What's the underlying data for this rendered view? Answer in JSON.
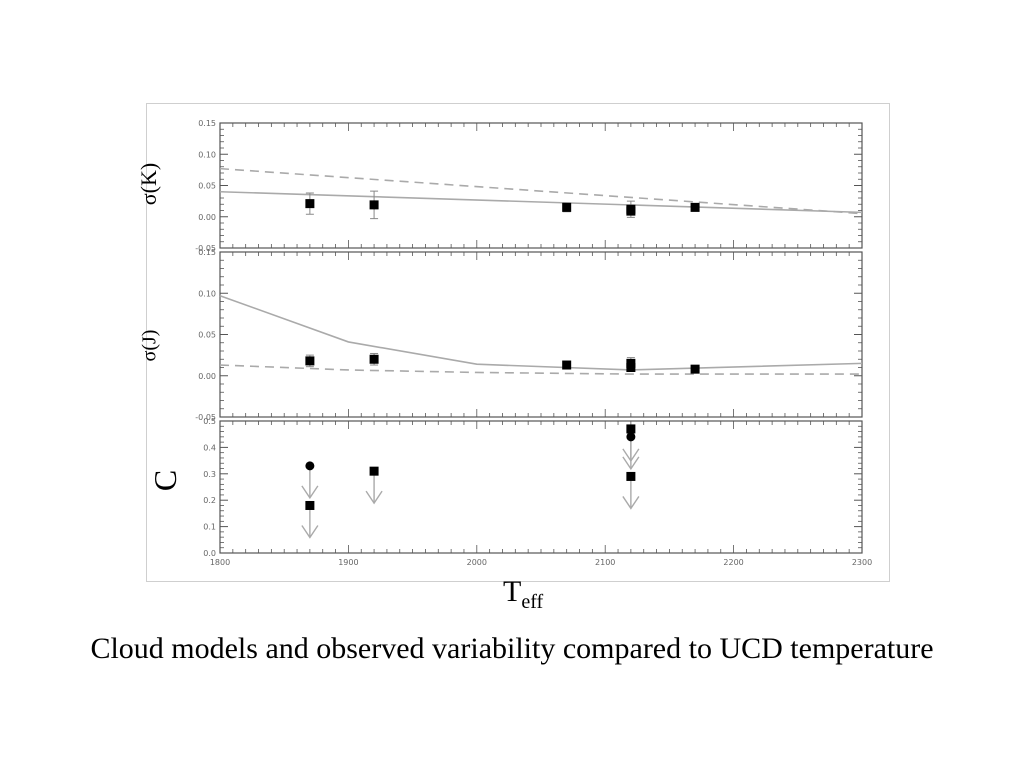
{
  "caption": "Cloud models and observed variability compared to UCD temperature",
  "chart_data": [
    {
      "type": "scatter",
      "panel": "top",
      "ylabel": "σ(K)",
      "xlim": [
        1800,
        2300
      ],
      "ylim": [
        -0.05,
        0.15
      ],
      "yticks": [
        "-0.05",
        "0.00",
        "0.05",
        "0.10",
        "0.15"
      ],
      "grid": false,
      "points": [
        {
          "x": 1870,
          "y": 0.021,
          "err": 0.017
        },
        {
          "x": 1920,
          "y": 0.019,
          "err": 0.022
        },
        {
          "x": 2070,
          "y": 0.015,
          "err": 0.007
        },
        {
          "x": 2120,
          "y": 0.012,
          "err": 0.013
        },
        {
          "x": 2120,
          "y": 0.009,
          "err": 0.0
        },
        {
          "x": 2170,
          "y": 0.015,
          "err": 0.006
        }
      ],
      "lines": [
        {
          "style": "solid",
          "x": [
            1800,
            2300
          ],
          "y": [
            0.04,
            0.007
          ]
        },
        {
          "style": "dashed",
          "x": [
            1800,
            2300
          ],
          "y": [
            0.077,
            0.005
          ]
        }
      ]
    },
    {
      "type": "scatter",
      "panel": "middle",
      "ylabel": "σ(J)",
      "xlim": [
        1800,
        2300
      ],
      "ylim": [
        -0.05,
        0.15
      ],
      "yticks": [
        "-0.05",
        "0.00",
        "0.05",
        "0.10",
        "0.15"
      ],
      "grid": false,
      "points": [
        {
          "x": 1870,
          "y": 0.018,
          "err": 0.007
        },
        {
          "x": 1920,
          "y": 0.02,
          "err": 0.007
        },
        {
          "x": 2070,
          "y": 0.013,
          "err": 0.004
        },
        {
          "x": 2120,
          "y": 0.015,
          "err": 0.007
        },
        {
          "x": 2120,
          "y": 0.01,
          "err": 0.0
        },
        {
          "x": 2170,
          "y": 0.008,
          "err": 0.004
        }
      ],
      "lines": [
        {
          "style": "solid",
          "x": [
            1800,
            1900,
            2000,
            2120,
            2300
          ],
          "y": [
            0.097,
            0.041,
            0.014,
            0.007,
            0.015
          ]
        },
        {
          "style": "dashed",
          "x": [
            1800,
            1900,
            2000,
            2120,
            2300
          ],
          "y": [
            0.013,
            0.007,
            0.004,
            0.002,
            0.002
          ]
        }
      ]
    },
    {
      "type": "scatter",
      "panel": "bottom",
      "ylabel": "C",
      "xlim": [
        1800,
        2300
      ],
      "ylim": [
        0.0,
        0.5
      ],
      "yticks": [
        "0.0",
        "0.1",
        "0.2",
        "0.3",
        "0.4",
        "0.5"
      ],
      "xticks": [
        "1800",
        "1900",
        "2000",
        "2100",
        "2200",
        "2300"
      ],
      "xlabel": "T",
      "xlabel_sub": "eff",
      "grid": false,
      "upper_limits": [
        {
          "x": 1870,
          "y": 0.33,
          "marker": "circle"
        },
        {
          "x": 1870,
          "y": 0.18,
          "marker": "square"
        },
        {
          "x": 1920,
          "y": 0.31,
          "marker": "square"
        },
        {
          "x": 2120,
          "y": 0.47,
          "marker": "square"
        },
        {
          "x": 2120,
          "y": 0.44,
          "marker": "circle"
        },
        {
          "x": 2120,
          "y": 0.29,
          "marker": "square"
        }
      ]
    }
  ]
}
